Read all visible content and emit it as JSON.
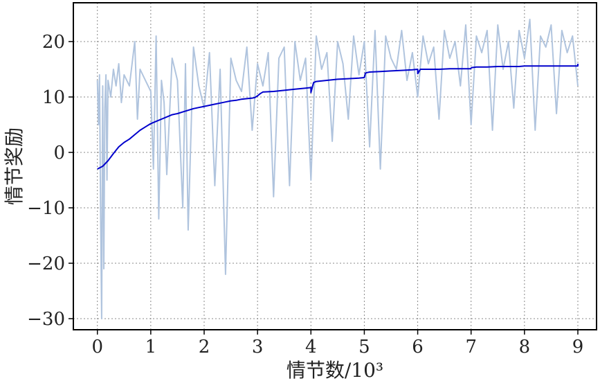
{
  "chart_data": {
    "type": "line",
    "title": "",
    "xlabel": "情节数/10³",
    "ylabel": "情节奖励",
    "xlim": [
      -0.45,
      9.35
    ],
    "ylim": [
      -32,
      27
    ],
    "x_ticks": [
      0,
      1,
      2,
      3,
      4,
      5,
      6,
      7,
      8,
      9
    ],
    "x_tick_labels": [
      "0",
      "1",
      "2",
      "3",
      "4",
      "5",
      "6",
      "7",
      "8",
      "9"
    ],
    "y_ticks": [
      -30,
      -20,
      -10,
      0,
      10,
      20
    ],
    "y_tick_labels": [
      "−30",
      "−20",
      "−10",
      "0",
      "10",
      "20"
    ],
    "grid": true,
    "colors": {
      "raw": "#b0c4de",
      "smooth": "#0000cc",
      "frame": "#000000"
    },
    "series": [
      {
        "role": "raw",
        "x": [
          0.0,
          0.02,
          0.04,
          0.06,
          0.08,
          0.1,
          0.12,
          0.14,
          0.16,
          0.18,
          0.2,
          0.25,
          0.3,
          0.35,
          0.4,
          0.45,
          0.5,
          0.6,
          0.7,
          0.75,
          0.8,
          0.9,
          1.0,
          1.05,
          1.1,
          1.15,
          1.2,
          1.25,
          1.3,
          1.4,
          1.5,
          1.6,
          1.65,
          1.7,
          1.8,
          1.9,
          2.0,
          2.1,
          2.2,
          2.3,
          2.4,
          2.5,
          2.6,
          2.7,
          2.8,
          2.9,
          3.0,
          3.1,
          3.2,
          3.3,
          3.4,
          3.5,
          3.6,
          3.7,
          3.8,
          3.9,
          4.0,
          4.1,
          4.2,
          4.3,
          4.4,
          4.5,
          4.6,
          4.7,
          4.8,
          4.9,
          5.0,
          5.1,
          5.2,
          5.3,
          5.4,
          5.5,
          5.6,
          5.7,
          5.8,
          5.9,
          6.0,
          6.1,
          6.2,
          6.3,
          6.4,
          6.5,
          6.6,
          6.7,
          6.8,
          6.9,
          7.0,
          7.1,
          7.2,
          7.3,
          7.4,
          7.5,
          7.6,
          7.7,
          7.8,
          7.9,
          8.0,
          8.1,
          8.2,
          8.3,
          8.4,
          8.5,
          8.6,
          8.7,
          8.8,
          8.9,
          9.0
        ],
        "y": [
          13,
          5,
          14,
          -10,
          -30,
          12,
          -21,
          8,
          14,
          -5,
          13,
          10,
          15,
          12,
          16,
          9,
          14,
          12,
          20,
          6,
          15,
          13,
          11,
          -3,
          21,
          -12,
          13,
          9,
          -4,
          17,
          13,
          -10,
          16,
          -14,
          19,
          12,
          8,
          18,
          -6,
          15,
          -22,
          17,
          13,
          11,
          19,
          4,
          16,
          12,
          18,
          -8,
          17,
          19,
          -6,
          20,
          13,
          17,
          -5,
          21,
          15,
          18,
          2,
          20,
          16,
          6,
          21,
          14,
          20,
          1,
          22,
          -3,
          21,
          17,
          15,
          22,
          13,
          18,
          10,
          21,
          16,
          19,
          6,
          22,
          17,
          20,
          12,
          23,
          5,
          21,
          18,
          22,
          4,
          23,
          15,
          20,
          8,
          22,
          17,
          24,
          4,
          21,
          19,
          23,
          7,
          22,
          18,
          21,
          12
        ]
      },
      {
        "role": "smoothed",
        "x": [
          0.0,
          0.1,
          0.2,
          0.3,
          0.4,
          0.5,
          0.6,
          0.7,
          0.8,
          0.9,
          1.0,
          1.1,
          1.2,
          1.3,
          1.4,
          1.5,
          1.6,
          1.7,
          1.8,
          1.9,
          2.0,
          2.1,
          2.2,
          2.3,
          2.4,
          2.5,
          2.6,
          2.7,
          2.8,
          2.9,
          2.95,
          3.0,
          3.05,
          3.1,
          3.3,
          3.5,
          3.7,
          3.9,
          4.0,
          4.0,
          4.05,
          4.1,
          4.3,
          4.5,
          4.7,
          4.9,
          5.0,
          5.02,
          5.05,
          5.1,
          5.3,
          5.5,
          5.7,
          5.9,
          6.0,
          6.0,
          6.05,
          6.2,
          6.4,
          6.6,
          6.8,
          6.99,
          7.01,
          7.1,
          7.3,
          7.5,
          7.7,
          7.9,
          8.0,
          8.2,
          8.4,
          8.6,
          8.8,
          9.0,
          9.0
        ],
        "y": [
          -3,
          -2.5,
          -1.5,
          -0.2,
          1.0,
          1.8,
          2.4,
          3.2,
          4.0,
          4.6,
          5.2,
          5.6,
          6.0,
          6.4,
          6.8,
          7.0,
          7.3,
          7.6,
          7.9,
          8.1,
          8.3,
          8.5,
          8.7,
          8.9,
          9.1,
          9.3,
          9.4,
          9.6,
          9.7,
          9.8,
          9.9,
          10.2,
          10.6,
          10.9,
          11.0,
          11.2,
          11.4,
          11.6,
          11.7,
          10.8,
          12.6,
          12.8,
          13.0,
          13.2,
          13.3,
          13.4,
          13.5,
          14.3,
          14.4,
          14.5,
          14.6,
          14.7,
          14.8,
          14.9,
          15.0,
          14.2,
          15.0,
          15.0,
          15.0,
          15.1,
          15.1,
          15.1,
          15.3,
          15.4,
          15.4,
          15.5,
          15.5,
          15.5,
          15.6,
          15.6,
          15.6,
          15.6,
          15.6,
          15.6,
          16.0
        ]
      }
    ]
  }
}
